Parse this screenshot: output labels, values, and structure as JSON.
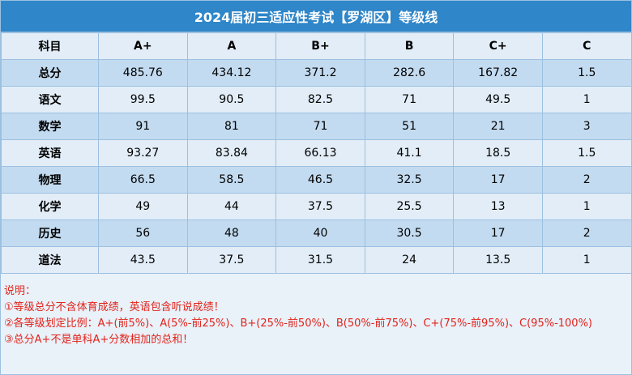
{
  "title": "2024届初三适应性考试【罗湖区】等级线",
  "table": {
    "headers": [
      "科目",
      "A+",
      "A",
      "B+",
      "B",
      "C+",
      "C"
    ],
    "rows": [
      {
        "subject": "总分",
        "values": [
          "485.76",
          "434.12",
          "371.2",
          "282.6",
          "167.82",
          "1.5"
        ]
      },
      {
        "subject": "语文",
        "values": [
          "99.5",
          "90.5",
          "82.5",
          "71",
          "49.5",
          "1"
        ]
      },
      {
        "subject": "数学",
        "values": [
          "91",
          "81",
          "71",
          "51",
          "21",
          "3"
        ]
      },
      {
        "subject": "英语",
        "values": [
          "93.27",
          "83.84",
          "66.13",
          "41.1",
          "18.5",
          "1.5"
        ]
      },
      {
        "subject": "物理",
        "values": [
          "66.5",
          "58.5",
          "46.5",
          "32.5",
          "17",
          "2"
        ]
      },
      {
        "subject": "化学",
        "values": [
          "49",
          "44",
          "37.5",
          "25.5",
          "13",
          "1"
        ]
      },
      {
        "subject": "历史",
        "values": [
          "56",
          "48",
          "40",
          "30.5",
          "17",
          "2"
        ]
      },
      {
        "subject": "道法",
        "values": [
          "43.5",
          "37.5",
          "31.5",
          "24",
          "13.5",
          "1"
        ]
      }
    ]
  },
  "notes": {
    "heading": "说明：",
    "items": [
      "①等级总分不含体育成绩，英语包含听说成绩！",
      "②各等级划定比例：A+(前5%)、A(5%-前25%)、B+(25%-前50%)、B(50%-前75%)、C+(75%-前95%)、C(95%-100%)",
      "③总分A+不是单科A+分数相加的总和！"
    ]
  },
  "colors": {
    "title_bg": "#2f86c8",
    "row_light": "#e2edf7",
    "row_dark": "#c3dbf0",
    "border": "#9cc0e0",
    "note_text": "#e2231a"
  }
}
